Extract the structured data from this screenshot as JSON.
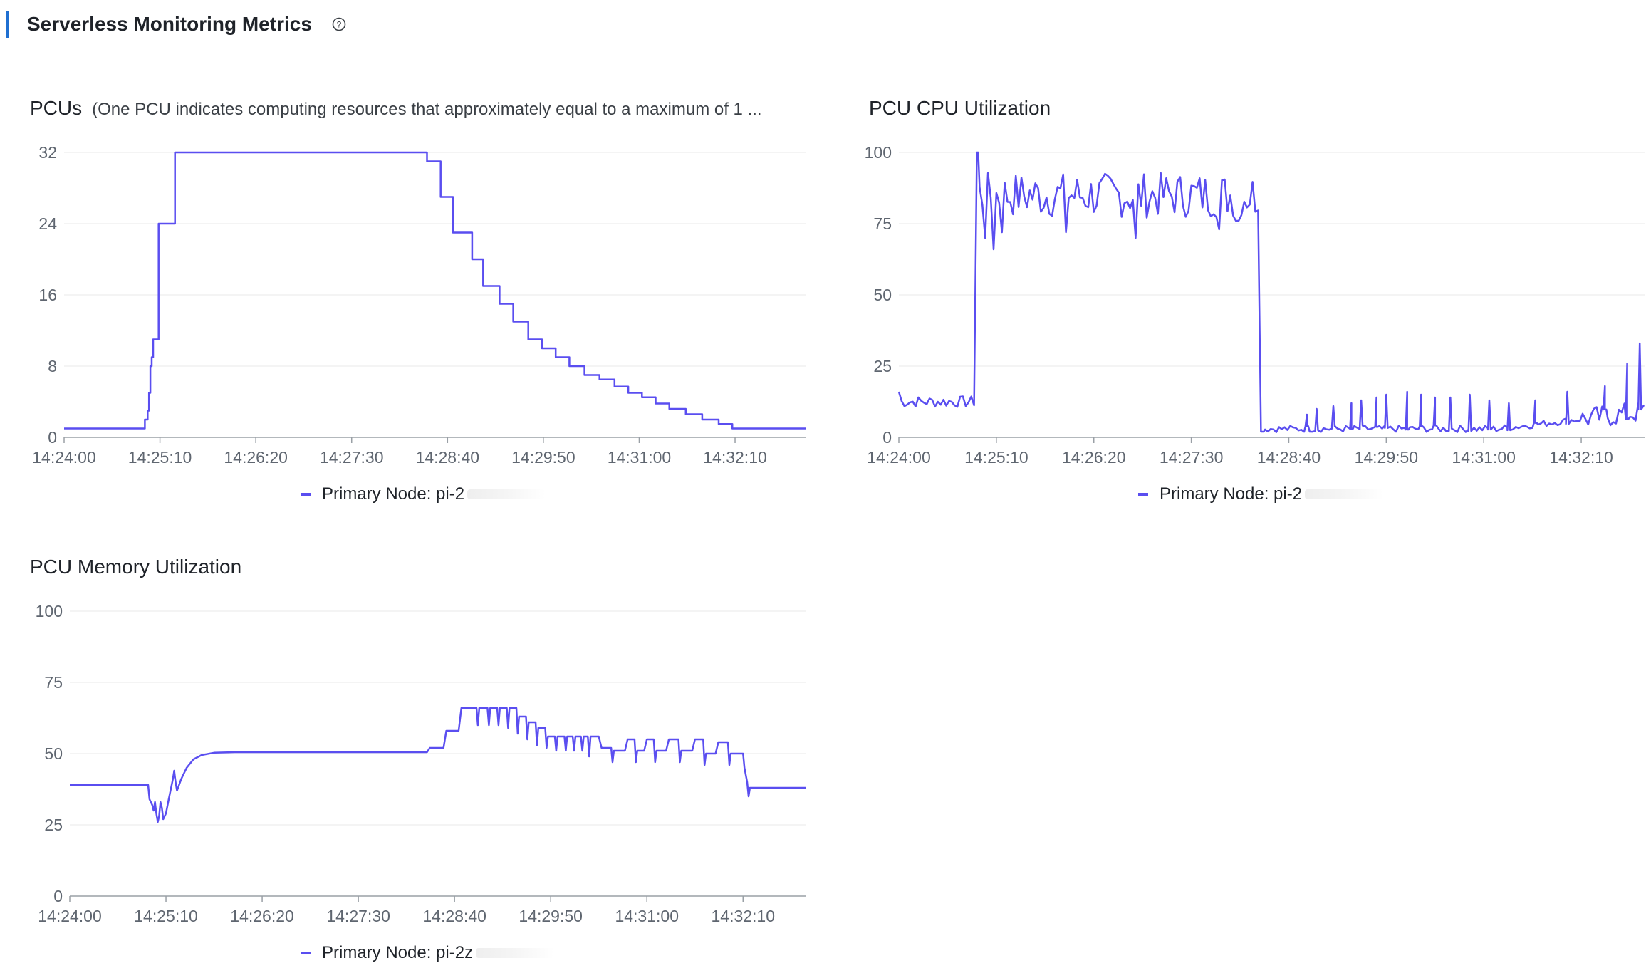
{
  "header": {
    "title": "Serverless Monitoring Metrics"
  },
  "colors": {
    "series": "#5a4ef0",
    "accent": "#1f6fd1",
    "grid": "#e8e8e8",
    "axis": "#9aa0a6"
  },
  "chart_data": [
    {
      "id": "pcus",
      "type": "line",
      "title": "PCUs",
      "subtitle": "(One PCU indicates computing resources that approximately equal to a maximum of 1 ...",
      "xlabel": "",
      "ylabel": "",
      "x_ticks": [
        "14:24:00",
        "14:25:10",
        "14:26:20",
        "14:27:30",
        "14:28:40",
        "14:29:50",
        "14:31:00",
        "14:32:10"
      ],
      "y_ticks": [
        "0",
        "8",
        "16",
        "24",
        "32"
      ],
      "xlim": [
        0,
        542
      ],
      "ylim": [
        0,
        32
      ],
      "legend": {
        "label": "Primary Node: pi-2",
        "position": "bottom"
      },
      "series": [
        {
          "name": "Primary Node: pi-2",
          "step": true,
          "points": [
            [
              0,
              1
            ],
            [
              58,
              1
            ],
            [
              59,
              2
            ],
            [
              61,
              3
            ],
            [
              62,
              5
            ],
            [
              63,
              8
            ],
            [
              64,
              9
            ],
            [
              65,
              11
            ],
            [
              67,
              11
            ],
            [
              69,
              24
            ],
            [
              78,
              24
            ],
            [
              81,
              32
            ],
            [
              263,
              32
            ],
            [
              265,
              31
            ],
            [
              273,
              31
            ],
            [
              275,
              27
            ],
            [
              282,
              27
            ],
            [
              284,
              23
            ],
            [
              296,
              23
            ],
            [
              298,
              20
            ],
            [
              304,
              20
            ],
            [
              306,
              17
            ],
            [
              316,
              17
            ],
            [
              318,
              15
            ],
            [
              326,
              15
            ],
            [
              328,
              13
            ],
            [
              337,
              13
            ],
            [
              339,
              11
            ],
            [
              347,
              11
            ],
            [
              349,
              10
            ],
            [
              357,
              10
            ],
            [
              359,
              9
            ],
            [
              367,
              9
            ],
            [
              369,
              8
            ],
            [
              378,
              8
            ],
            [
              380,
              7
            ],
            [
              389,
              7
            ],
            [
              391,
              6.5
            ],
            [
              400,
              6.5
            ],
            [
              402,
              5.7
            ],
            [
              410,
              5.7
            ],
            [
              412,
              5
            ],
            [
              420,
              5
            ],
            [
              422,
              4.5
            ],
            [
              430,
              4.5
            ],
            [
              432,
              3.8
            ],
            [
              440,
              3.8
            ],
            [
              442,
              3.2
            ],
            [
              452,
              3.2
            ],
            [
              454,
              2.6
            ],
            [
              464,
              2.6
            ],
            [
              466,
              2
            ],
            [
              476,
              2
            ],
            [
              478,
              1.5
            ],
            [
              486,
              1.5
            ],
            [
              488,
              1
            ],
            [
              542,
              1
            ]
          ]
        }
      ]
    },
    {
      "id": "cpu",
      "type": "line",
      "title": "PCU CPU Utilization",
      "xlabel": "",
      "ylabel": "",
      "x_ticks": [
        "14:24:00",
        "14:25:10",
        "14:26:20",
        "14:27:30",
        "14:28:40",
        "14:29:50",
        "14:31:00",
        "14:32:10"
      ],
      "y_ticks": [
        "0",
        "25",
        "50",
        "75",
        "100"
      ],
      "xlim": [
        0,
        536
      ],
      "ylim": [
        0,
        100
      ],
      "legend": {
        "label": "Primary Node: pi-2",
        "position": "bottom"
      },
      "series": [
        {
          "name": "Primary Node: pi-2",
          "generator": {
            "segments": [
              {
                "from": 0,
                "to": 56,
                "base": 12.5,
                "noise": 2,
                "step": 2,
                "start": 16
              },
              {
                "from": 56,
                "to": 58,
                "base": 100
              },
              {
                "from": 58,
                "to": 260,
                "base": 85,
                "noise": 8,
                "step": 2,
                "dips": [
                  [
                    62,
                    70
                  ],
                  [
                    68,
                    66
                  ],
                  [
                    74,
                    72
                  ],
                  [
                    120,
                    72
                  ],
                  [
                    170,
                    70
                  ],
                  [
                    230,
                    73
                  ],
                  [
                    243,
                    76
                  ]
                ]
              },
              {
                "from": 260,
                "to": 263,
                "base": 2
              },
              {
                "from": 263,
                "to": 536,
                "base": 3,
                "noise": 1.2,
                "step": 2,
                "rise_from": 430,
                "rise_to": 9,
                "noise_late": 4
              }
            ],
            "spikes": [
              [
                293,
                8
              ],
              [
                300,
                10
              ],
              [
                312,
                11
              ],
              [
                325,
                12
              ],
              [
                332,
                13
              ],
              [
                343,
                14
              ],
              [
                350,
                15
              ],
              [
                365,
                16
              ],
              [
                375,
                15
              ],
              [
                385,
                14
              ],
              [
                396,
                14
              ],
              [
                410,
                15
              ],
              [
                424,
                13
              ],
              [
                438,
                12
              ],
              [
                457,
                13
              ],
              [
                480,
                16
              ],
              [
                507,
                18
              ],
              [
                523,
                26
              ],
              [
                532,
                33
              ],
              [
                543,
                20
              ]
            ]
          }
        }
      ]
    },
    {
      "id": "memory",
      "type": "line",
      "title": "PCU Memory Utilization",
      "xlabel": "",
      "ylabel": "",
      "x_ticks": [
        "14:24:00",
        "14:25:10",
        "14:26:20",
        "14:27:30",
        "14:28:40",
        "14:29:50",
        "14:31:00",
        "14:32:10"
      ],
      "y_ticks": [
        "0",
        "25",
        "50",
        "75",
        "100"
      ],
      "xlim": [
        0,
        536
      ],
      "ylim": [
        0,
        100
      ],
      "legend": {
        "label": "Primary Node: pi-2z",
        "position": "bottom"
      },
      "series": [
        {
          "name": "Primary Node: pi-2z",
          "points": [
            [
              0,
              39
            ],
            [
              57,
              39
            ],
            [
              58,
              34
            ],
            [
              60,
              32
            ],
            [
              61,
              30
            ],
            [
              62,
              33
            ],
            [
              63,
              29
            ],
            [
              64,
              26
            ],
            [
              65,
              28
            ],
            [
              66,
              33
            ],
            [
              67,
              31
            ],
            [
              68,
              27
            ],
            [
              70,
              29
            ],
            [
              72,
              34
            ],
            [
              75,
              41
            ],
            [
              76,
              44
            ],
            [
              77,
              40
            ],
            [
              78,
              37
            ],
            [
              81,
              41
            ],
            [
              85,
              45
            ],
            [
              90,
              48
            ],
            [
              96,
              49.5
            ],
            [
              105,
              50.3
            ],
            [
              120,
              50.5
            ],
            [
              200,
              50.5
            ],
            [
              259,
              50.5
            ],
            [
              260,
              50.5
            ],
            [
              262,
              52
            ],
            [
              272,
              52
            ],
            [
              274,
              58
            ],
            [
              283,
              58
            ],
            [
              285,
              66
            ],
            [
              296,
              66
            ],
            [
              297,
              60
            ],
            [
              298,
              66
            ],
            [
              304,
              66
            ],
            [
              305,
              60
            ],
            [
              306,
              66
            ],
            [
              311,
              66
            ],
            [
              312,
              60
            ],
            [
              313,
              66
            ],
            [
              318,
              66
            ],
            [
              319,
              59
            ],
            [
              320,
              66
            ],
            [
              325,
              66
            ],
            [
              326,
              57
            ],
            [
              327,
              63
            ],
            [
              332,
              63
            ],
            [
              333,
              55
            ],
            [
              334,
              61
            ],
            [
              339,
              61
            ],
            [
              340,
              53
            ],
            [
              341,
              59
            ],
            [
              346,
              59
            ],
            [
              347,
              52
            ],
            [
              348,
              56
            ],
            [
              353,
              56
            ],
            [
              354,
              51
            ],
            [
              355,
              56
            ],
            [
              360,
              56
            ],
            [
              361,
              51
            ],
            [
              362,
              56
            ],
            [
              366,
              56
            ],
            [
              367,
              51
            ],
            [
              368,
              56
            ],
            [
              372,
              56
            ],
            [
              373,
              51
            ],
            [
              374,
              56
            ],
            [
              377,
              56
            ],
            [
              378,
              49
            ],
            [
              379,
              56
            ],
            [
              385,
              56
            ],
            [
              387,
              52
            ],
            [
              394,
              52
            ],
            [
              395,
              47
            ],
            [
              396,
              51
            ],
            [
              404,
              51
            ],
            [
              406,
              55
            ],
            [
              411,
              55
            ],
            [
              412,
              47
            ],
            [
              413,
              51
            ],
            [
              418,
              51
            ],
            [
              420,
              55
            ],
            [
              425,
              55
            ],
            [
              426,
              47
            ],
            [
              427,
              51
            ],
            [
              434,
              51
            ],
            [
              436,
              55
            ],
            [
              443,
              55
            ],
            [
              444,
              47
            ],
            [
              445,
              51
            ],
            [
              453,
              51
            ],
            [
              455,
              55
            ],
            [
              461,
              55
            ],
            [
              462,
              46
            ],
            [
              463,
              50
            ],
            [
              470,
              50
            ],
            [
              472,
              54
            ],
            [
              479,
              54
            ],
            [
              480,
              46
            ],
            [
              481,
              50
            ],
            [
              490,
              50
            ],
            [
              491,
              45
            ],
            [
              493,
              40
            ],
            [
              494,
              35
            ],
            [
              495,
              38
            ],
            [
              536,
              38
            ]
          ]
        }
      ]
    }
  ]
}
